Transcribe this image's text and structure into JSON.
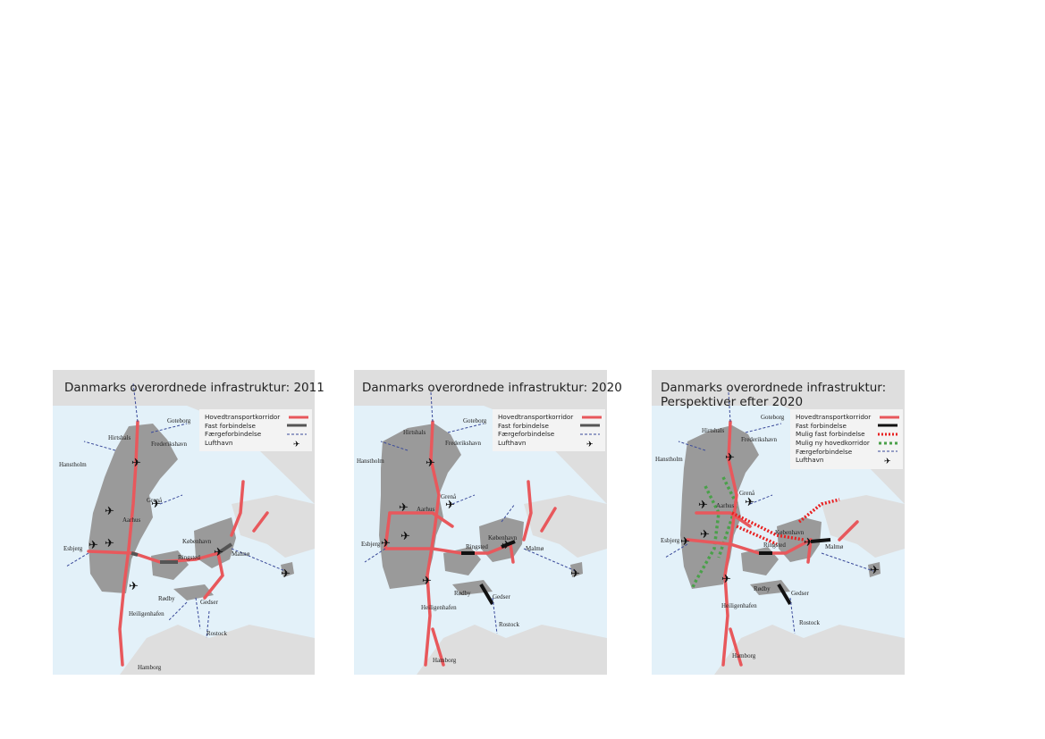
{
  "maps": [
    {
      "title": "Danmarks overordnede infrastruktur: 2011",
      "legend": [
        {
          "label": "Hovedtransportkorridor",
          "symbol": "red-line"
        },
        {
          "label": "Fast forbindelse",
          "symbol": "grey-line"
        },
        {
          "label": "Færgeforbindelse",
          "symbol": "blue-dash"
        },
        {
          "label": "Lufthavn",
          "symbol": "plane"
        }
      ]
    },
    {
      "title": "Danmarks overordnede infrastruktur: 2020",
      "legend": [
        {
          "label": "Hovedtransportkorridor",
          "symbol": "red-line"
        },
        {
          "label": "Fast forbindelse",
          "symbol": "grey-line"
        },
        {
          "label": "Færgeforbindelse",
          "symbol": "blue-dash"
        },
        {
          "label": "Lufthavn",
          "symbol": "plane"
        }
      ]
    },
    {
      "title_line1": "Danmarks overordnede infrastruktur:",
      "title_line2": "Perspektiver efter 2020",
      "legend": [
        {
          "label": "Hovedtransportkorridor",
          "symbol": "red-line"
        },
        {
          "label": "Fast forbindelse",
          "symbol": "black-line"
        },
        {
          "label": "Mulig fast forbindelse",
          "symbol": "red-dotted"
        },
        {
          "label": "Mulig ny hovedkorridor",
          "symbol": "green-dotted"
        },
        {
          "label": "Færgeforbindelse",
          "symbol": "blue-dash"
        },
        {
          "label": "Lufthavn",
          "symbol": "plane"
        }
      ]
    }
  ],
  "cities": {
    "goteborg": "Goteborg",
    "hirtshals": "Hirtshals",
    "frederikshavn": "Frederikshavn",
    "hanstholm": "Hanstholm",
    "grena": "Grenå",
    "aarhus": "Aarhus",
    "kobenhavn": "København",
    "malmo": "Malmø",
    "esbjerg": "Esbjerg",
    "ringsted": "Ringsted",
    "rodby": "Rødby",
    "gedser": "Gedser",
    "heiligenhafen": "Heiligenhafen",
    "rostock": "Rostock",
    "hamborg": "Hamborg"
  },
  "colors": {
    "land_denmark": "#9a9a9a",
    "land_other": "#dedede",
    "sea": "#e3f1f9",
    "corridor": "#e8585c",
    "fixed_link_2011_2020": "#555555",
    "fixed_link_future": "#111111",
    "ferry": "#3a4a9a",
    "possible_corridor": "#4aa04a"
  },
  "icons": {
    "airport": "plane-icon"
  }
}
